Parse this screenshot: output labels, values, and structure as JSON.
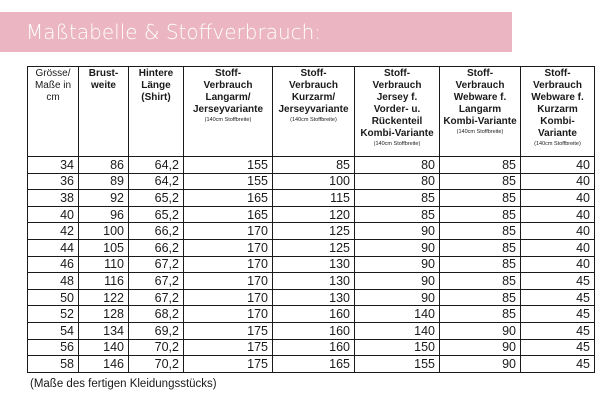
{
  "title": "Maßtabelle & Stoffverbrauch:",
  "columns": [
    {
      "lines": [
        "Grösse/",
        "Maße in",
        "cm"
      ],
      "note": "",
      "bold": false
    },
    {
      "lines": [
        "Brust-",
        "weite"
      ],
      "note": "",
      "bold": true
    },
    {
      "lines": [
        "Hintere",
        "Länge",
        "(Shirt)"
      ],
      "note": "",
      "bold": true
    },
    {
      "lines": [
        "Stoff-",
        "Verbrauch",
        "Langarm/",
        "Jerseyvariante"
      ],
      "note": "(140cm Stoffbreite)",
      "bold": true
    },
    {
      "lines": [
        "Stoff-",
        "Verbrauch",
        "Kurzarm/",
        "Jerseyvariante"
      ],
      "note": "(140cm Stoffbreite)",
      "bold": true
    },
    {
      "lines": [
        "Stoff-",
        "Verbrauch",
        "Jersey f.",
        "Vorder- u.",
        "Rückenteil",
        "Kombi-Variante"
      ],
      "note": "(140cm Stoffbreite)",
      "bold": true
    },
    {
      "lines": [
        "Stoff-",
        "Verbrauch",
        "Webware f.",
        "Langarm",
        "Kombi-Variante"
      ],
      "note": "(140cm Stoffbreite)",
      "bold": true
    },
    {
      "lines": [
        "Stoff-",
        "Verbrauch",
        "Webware f.",
        "Kurzarm",
        "Kombi-Variante"
      ],
      "note": "(140cm Stoffbreite)",
      "bold": true
    }
  ],
  "rows": [
    [
      "34",
      "86",
      "64,2",
      "155",
      "85",
      "80",
      "85",
      "40"
    ],
    [
      "36",
      "89",
      "64,2",
      "155",
      "100",
      "80",
      "85",
      "40"
    ],
    [
      "38",
      "92",
      "65,2",
      "165",
      "115",
      "85",
      "85",
      "40"
    ],
    [
      "40",
      "96",
      "65,2",
      "165",
      "120",
      "85",
      "85",
      "40"
    ],
    [
      "42",
      "100",
      "66,2",
      "170",
      "125",
      "90",
      "85",
      "40"
    ],
    [
      "44",
      "105",
      "66,2",
      "170",
      "125",
      "90",
      "85",
      "40"
    ],
    [
      "46",
      "110",
      "67,2",
      "170",
      "130",
      "90",
      "85",
      "40"
    ],
    [
      "48",
      "116",
      "67,2",
      "170",
      "130",
      "90",
      "85",
      "45"
    ],
    [
      "50",
      "122",
      "67,2",
      "170",
      "130",
      "90",
      "85",
      "45"
    ],
    [
      "52",
      "128",
      "68,2",
      "170",
      "160",
      "140",
      "85",
      "45"
    ],
    [
      "54",
      "134",
      "69,2",
      "175",
      "160",
      "140",
      "90",
      "45"
    ],
    [
      "56",
      "140",
      "70,2",
      "175",
      "160",
      "150",
      "90",
      "45"
    ],
    [
      "58",
      "146",
      "70,2",
      "175",
      "165",
      "155",
      "90",
      "45"
    ]
  ],
  "footnote": "(Maße des fertigen Kleidungsstücks)",
  "colors": {
    "banner": "#ebb6c1",
    "banner_text": "#ffffff",
    "border": "#1a1a1a"
  }
}
